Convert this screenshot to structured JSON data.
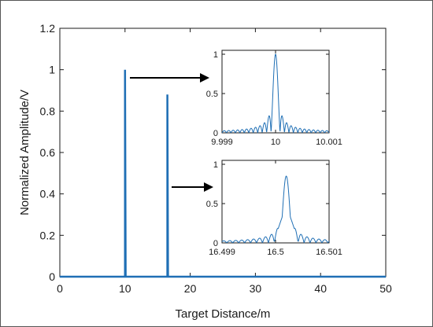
{
  "chart_data": [
    {
      "type": "line",
      "xlabel": "Target Distance/m",
      "ylabel": "Normalized Amplitude/V",
      "xlim": [
        0,
        50
      ],
      "ylim": [
        0,
        1.2
      ],
      "x_ticks": [
        "0",
        "10",
        "20",
        "30",
        "40",
        "50"
      ],
      "y_ticks": [
        "0",
        "0.2",
        "0.4",
        "0.6",
        "0.8",
        "1",
        "1.2"
      ],
      "grid": false,
      "series": [
        {
          "x": [
            0,
            9.9,
            10,
            10,
            10.1,
            16.4,
            16.5,
            16.5,
            16.6,
            50
          ],
          "y": [
            0,
            0,
            0,
            1.0,
            0,
            0,
            0,
            0.88,
            0,
            0
          ]
        }
      ],
      "color": "#1f6fb5"
    },
    {
      "type": "line",
      "panel": "inset-top",
      "xlim": [
        9.999,
        10.001
      ],
      "ylim": [
        0,
        1.05
      ],
      "x_ticks": [
        "9.999",
        "10",
        "10.001"
      ],
      "y_ticks": [
        "0",
        "0.5",
        "1"
      ],
      "peak_x": 10.0,
      "peak_y": 1.0,
      "sidelobe_levels": [
        0.21,
        0.13,
        0.09,
        0.07,
        0.05,
        0.04,
        0.03,
        0.02
      ]
    },
    {
      "type": "line",
      "panel": "inset-bottom",
      "xlim": [
        16.499,
        16.501
      ],
      "ylim": [
        0,
        1.05
      ],
      "x_ticks": [
        "16.499",
        "16.5",
        "16.501"
      ],
      "y_ticks": [
        "0",
        "0.5",
        "1"
      ],
      "peak_x": 16.5002,
      "peak_y": 0.85,
      "shoulder_y": 0.4,
      "sidelobe_levels": [
        0.16,
        0.1,
        0.07,
        0.05,
        0.04,
        0.03,
        0.02,
        0.02
      ]
    }
  ]
}
